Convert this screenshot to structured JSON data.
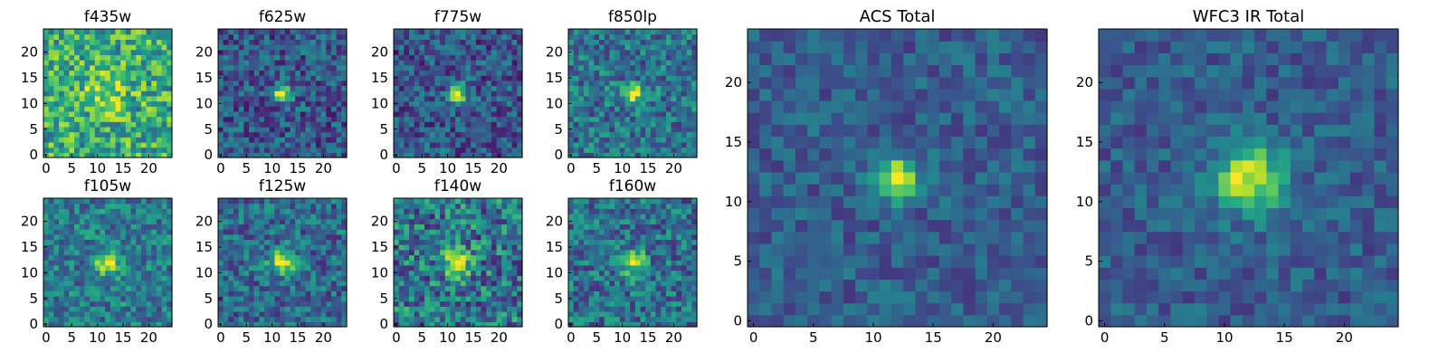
{
  "figure": {
    "colormap": "viridis",
    "grid_size": 25,
    "x_ticks": [
      0,
      5,
      10,
      15,
      20
    ],
    "y_ticks": [
      0,
      5,
      10,
      15,
      20
    ],
    "panels": [
      {
        "id": "f435w",
        "title": "f435w",
        "source_center": [
          12,
          12
        ],
        "source_sigma": 3.0,
        "peak": 0.25,
        "noise": 0.28,
        "background": 0.62
      },
      {
        "id": "f625w",
        "title": "f625w",
        "source_center": [
          12,
          12
        ],
        "source_sigma": 1.2,
        "peak": 0.75,
        "noise": 0.22,
        "background": 0.28
      },
      {
        "id": "f775w",
        "title": "f775w",
        "source_center": [
          12,
          12
        ],
        "source_sigma": 1.2,
        "peak": 0.75,
        "noise": 0.22,
        "background": 0.28
      },
      {
        "id": "f850lp",
        "title": "f850lp",
        "source_center": [
          12,
          12
        ],
        "source_sigma": 1.2,
        "peak": 0.55,
        "noise": 0.24,
        "background": 0.4
      },
      {
        "id": "f105w",
        "title": "f105w",
        "source_center": [
          12,
          12
        ],
        "source_sigma": 1.6,
        "peak": 0.55,
        "noise": 0.22,
        "background": 0.42
      },
      {
        "id": "f125w",
        "title": "f125w",
        "source_center": [
          12,
          12
        ],
        "source_sigma": 1.8,
        "peak": 0.55,
        "noise": 0.22,
        "background": 0.35
      },
      {
        "id": "f140w",
        "title": "f140w",
        "source_center": [
          12,
          12
        ],
        "source_sigma": 2.0,
        "peak": 0.45,
        "noise": 0.3,
        "background": 0.4
      },
      {
        "id": "f160w",
        "title": "f160w",
        "source_center": [
          12,
          12
        ],
        "source_sigma": 1.8,
        "peak": 0.5,
        "noise": 0.24,
        "background": 0.38
      },
      {
        "id": "acs-total",
        "title": "ACS Total",
        "source_center": [
          12,
          12
        ],
        "source_sigma": 1.3,
        "peak": 0.7,
        "noise": 0.14,
        "background": 0.3
      },
      {
        "id": "wfc3-ir-total",
        "title": "WFC3 IR Total",
        "source_center": [
          12,
          12
        ],
        "source_sigma": 2.0,
        "peak": 0.65,
        "noise": 0.14,
        "background": 0.3
      }
    ]
  }
}
